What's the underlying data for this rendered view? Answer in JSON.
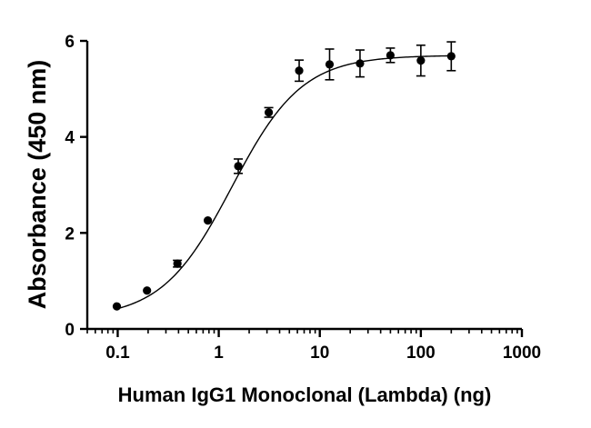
{
  "chart_data": {
    "type": "scatter",
    "title": "",
    "xlabel": "Human IgG1 Monoclonal (Lambda) (ng)",
    "ylabel": "Absorbance (450 nm)",
    "xscale": "log",
    "xlim": [
      0.05,
      1000
    ],
    "ylim": [
      0,
      6
    ],
    "x_ticks": [
      {
        "value": 0.1,
        "label": "0.1"
      },
      {
        "value": 1,
        "label": "1"
      },
      {
        "value": 10,
        "label": "10"
      },
      {
        "value": 100,
        "label": "100"
      },
      {
        "value": 1000,
        "label": "1000"
      }
    ],
    "y_ticks": [
      {
        "value": 0,
        "label": "0"
      },
      {
        "value": 2,
        "label": "2"
      },
      {
        "value": 4,
        "label": "4"
      },
      {
        "value": 6,
        "label": "6"
      }
    ],
    "grid": false,
    "legend": "none",
    "series": [
      {
        "name": "Absorbance",
        "x": [
          0.098,
          0.195,
          0.39,
          0.78,
          1.56,
          3.125,
          6.25,
          12.5,
          25,
          50,
          100,
          200
        ],
        "y": [
          0.47,
          0.8,
          1.36,
          2.26,
          3.39,
          4.51,
          5.38,
          5.51,
          5.53,
          5.7,
          5.59,
          5.68
        ],
        "error": [
          0.0,
          0.0,
          0.07,
          0.0,
          0.15,
          0.1,
          0.22,
          0.32,
          0.28,
          0.15,
          0.32,
          0.3
        ]
      }
    ],
    "fit": {
      "model": "4PL",
      "bottom": 0.22,
      "top": 5.7,
      "ec50": 1.35,
      "hill": 1.25,
      "x_range": [
        0.098,
        200
      ]
    }
  }
}
